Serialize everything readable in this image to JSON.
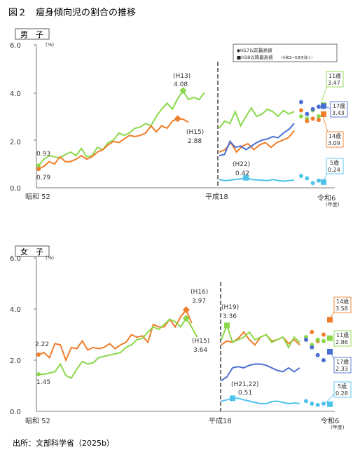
{
  "figure_title": "図２　瘦身傾向児の割合の推移",
  "source": "出所：文部科学省（2025b）",
  "colors": {
    "age5": "#4fc3ec",
    "age11": "#8ad84a",
    "age14": "#f07d2a",
    "age17": "#4a6fd2"
  },
  "legend": {
    "h17": "◆H17以前最高値",
    "h18": "■H18以降最高値",
    "h18_note": "（令和2～5年を除く）"
  },
  "chart_data": [
    {
      "type": "line",
      "subtitle": "男　子",
      "unit": "(%)",
      "ylim": [
        0,
        6
      ],
      "yticks": [
        "0.0",
        "2.0",
        "4.0",
        "6.0"
      ],
      "xlabels": {
        "start": "昭和 52",
        "mid": "平成18",
        "end": "令和6"
      },
      "x_unit": "(年度)",
      "series": [
        {
          "key": "age11",
          "label": "11歳",
          "end_label": "3.47",
          "old": [
            0.93,
            1.2,
            1.35,
            1.3,
            1.25,
            1.4,
            1.5,
            1.35,
            1.65,
            1.3,
            1.35,
            1.7,
            1.6,
            1.9,
            2.0,
            2.3,
            2.2,
            2.3,
            2.5,
            2.55,
            2.7,
            2.6,
            3.0,
            3.3,
            3.55,
            3.3,
            3.75,
            4.08,
            3.7,
            3.8,
            3.7,
            4.0
          ],
          "new": [
            2.5,
            2.8,
            2.7,
            3.2,
            2.6,
            3.0,
            3.35,
            3.0,
            3.1,
            3.3,
            3.2,
            3.0,
            3.25,
            3.1,
            3.2
          ],
          "covid": [
            3.0,
            2.9,
            3.25,
            3.0
          ],
          "final": 3.47
        },
        {
          "key": "age14",
          "label": "14歳",
          "end_label": "3.09",
          "old": [
            0.79,
            0.9,
            1.1,
            1.0,
            1.3,
            1.1,
            1.1,
            1.2,
            1.35,
            1.2,
            1.3,
            1.5,
            1.6,
            1.8,
            1.95,
            1.9,
            2.05,
            2.2,
            2.15,
            2.2,
            2.3,
            2.6,
            2.35,
            2.6,
            2.5,
            2.8,
            2.9,
            2.88,
            2.75
          ],
          "new": [
            1.5,
            1.6,
            1.9,
            1.5,
            1.75,
            1.85,
            1.6,
            1.8,
            1.9,
            1.7,
            1.9,
            2.0,
            2.1,
            2.4
          ],
          "covid": [
            3.25,
            2.8,
            2.9,
            2.85
          ],
          "final": 3.09
        },
        {
          "key": "age17",
          "label": "17歳",
          "end_label": "3.43",
          "old": [],
          "new": [
            1.35,
            1.4,
            1.95,
            1.7,
            1.75,
            1.6,
            1.75,
            1.9,
            2.0,
            2.05,
            2.15,
            2.1,
            2.3,
            2.45,
            2.7
          ],
          "covid": [
            3.6,
            3.1,
            3.3,
            3.4
          ],
          "final": 3.43
        },
        {
          "key": "age5",
          "label": "5歳",
          "end_label": "0.24",
          "old": [],
          "new": [
            0.35,
            0.3,
            0.32,
            0.35,
            0.38,
            0.42,
            0.35,
            0.33,
            0.32,
            0.3,
            0.35,
            0.3,
            0.28,
            0.3,
            0.32
          ],
          "covid": [
            0.5,
            0.4,
            0.2,
            0.3
          ],
          "final": 0.24
        }
      ],
      "annotations": [
        {
          "label": "(H13)",
          "value": "4.08"
        },
        {
          "label": "(H15)",
          "value": "2.88"
        },
        {
          "label": "(H22)",
          "value": "0.42"
        },
        {
          "value": "0.93"
        },
        {
          "value": "0.79"
        }
      ]
    },
    {
      "type": "line",
      "subtitle": "女　子",
      "unit": "(%)",
      "ylim": [
        0,
        6
      ],
      "yticks": [
        "0.0",
        "2.0",
        "4.0",
        "6.0"
      ],
      "xlabels": {
        "start": "昭和 52",
        "mid": "平成18",
        "end": "令和6"
      },
      "x_unit": "(年度)",
      "series": [
        {
          "key": "age14",
          "label": "14歳",
          "end_label": "3.58",
          "old": [
            2.22,
            2.3,
            2.1,
            2.65,
            2.6,
            2.0,
            2.5,
            2.45,
            2.75,
            2.4,
            2.5,
            2.45,
            2.5,
            2.65,
            2.45,
            2.6,
            2.7,
            3.0,
            2.9,
            2.95,
            2.7,
            3.4,
            3.3,
            3.3,
            3.6,
            3.3,
            3.7,
            3.97,
            3.45
          ],
          "new": [
            2.6,
            2.75,
            2.7,
            2.85,
            3.1,
            2.8,
            2.6,
            2.9,
            3.0,
            2.75,
            2.8,
            2.9,
            2.65,
            2.8,
            2.6
          ],
          "covid": [
            2.8,
            3.1,
            2.75,
            3.0
          ],
          "final": 3.58
        },
        {
          "key": "age11",
          "label": "11歳",
          "end_label": "2.86",
          "old": [
            1.45,
            1.45,
            1.5,
            1.55,
            1.85,
            1.4,
            1.3,
            1.65,
            1.95,
            1.85,
            1.9,
            2.1,
            2.15,
            2.2,
            2.25,
            2.3,
            2.5,
            2.6,
            2.8,
            2.85,
            3.1,
            3.3,
            3.2,
            3.4,
            3.6,
            3.5,
            3.3,
            3.64,
            3.3,
            2.9
          ],
          "new": [
            2.8,
            3.36,
            2.7,
            2.8,
            2.9,
            3.1,
            2.8,
            2.9,
            3.0,
            2.7,
            2.8,
            2.9,
            2.5,
            2.9,
            2.7
          ],
          "covid": [
            2.9,
            2.6,
            2.8,
            2.75
          ],
          "final": 2.86
        },
        {
          "key": "age17",
          "label": "17歳",
          "end_label": "2.33",
          "old": [],
          "new": [
            1.2,
            1.35,
            1.7,
            1.75,
            1.7,
            1.8,
            1.85,
            1.85,
            1.8,
            1.7,
            1.6,
            1.55,
            1.7,
            1.55,
            1.7
          ],
          "covid": [
            2.8,
            2.5,
            2.2,
            2.0
          ],
          "final": 2.33
        },
        {
          "key": "age5",
          "label": "5歳",
          "end_label": "0.28",
          "old": [],
          "new": [
            0.4,
            0.45,
            0.51,
            0.51,
            0.45,
            0.4,
            0.35,
            0.3,
            0.3,
            0.38,
            0.4,
            0.35,
            0.3,
            0.33,
            0.3
          ],
          "covid": [
            0.4,
            0.3,
            0.25,
            0.3
          ],
          "final": 0.28
        }
      ],
      "annotations": [
        {
          "label": "(H16)",
          "value": "3.97"
        },
        {
          "label": "(H15)",
          "value": "3.64"
        },
        {
          "label": "(H19)",
          "value": "3.36"
        },
        {
          "label": "(H21,22)",
          "value": "0.51"
        },
        {
          "value": "2.22"
        },
        {
          "value": "1.45"
        }
      ]
    }
  ]
}
